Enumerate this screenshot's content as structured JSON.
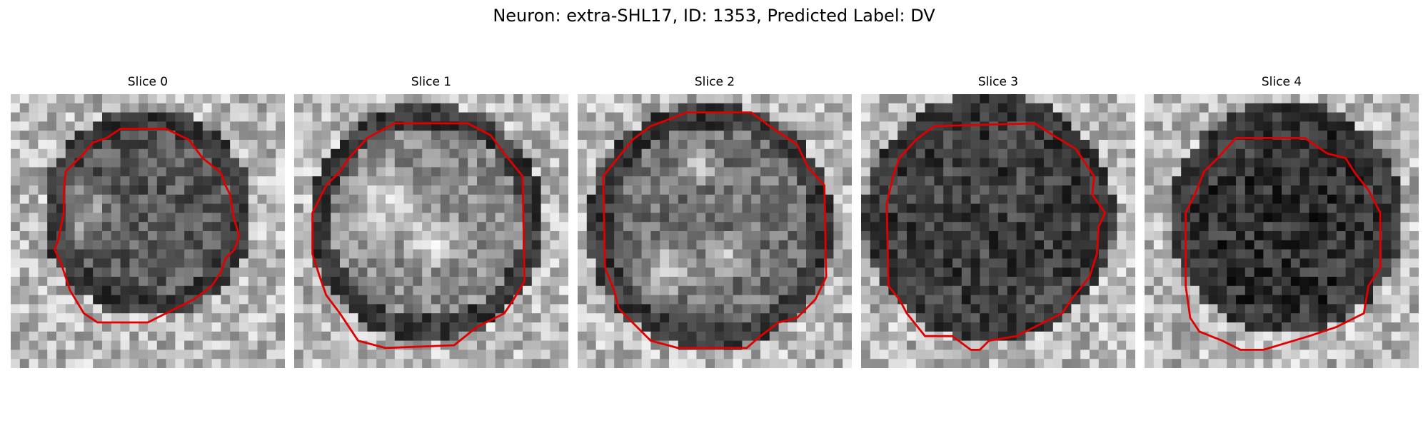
{
  "figure": {
    "title": "Neuron: extra-SHL17, ID: 1353, Predicted Label: DV"
  },
  "slices": [
    {
      "label": "Slice 0"
    },
    {
      "label": "Slice 1"
    },
    {
      "label": "Slice 2"
    },
    {
      "label": "Slice 3"
    },
    {
      "label": "Slice 4"
    }
  ],
  "colors": {
    "contour": "#e00000",
    "background": "#ffffff"
  }
}
